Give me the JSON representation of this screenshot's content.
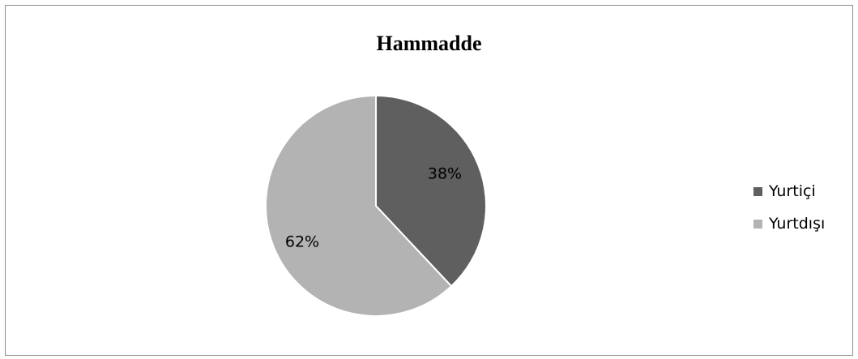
{
  "chart_data": {
    "type": "pie",
    "title": "Hammadde",
    "categories": [
      "Yurtiçi",
      "Yurtdışı"
    ],
    "values": [
      38,
      62
    ],
    "data_labels": [
      "38%",
      "62%"
    ],
    "colors": [
      "#5f5f5f",
      "#b3b3b3"
    ],
    "legend_placement": "right"
  }
}
